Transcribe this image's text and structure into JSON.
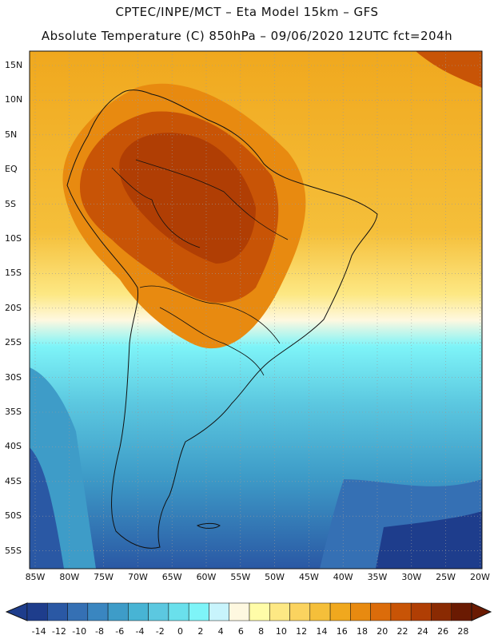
{
  "header": {
    "line1": "CPTEC/INPE/MCT –  Eta Model 15km – GFS",
    "line2": "Absolute Temperature (C) 850hPa – 09/06/2020 12UTC fct=204h"
  },
  "map": {
    "lat_labels": [
      "15N",
      "10N",
      "5N",
      "EQ",
      "5S",
      "10S",
      "15S",
      "20S",
      "25S",
      "30S",
      "35S",
      "40S",
      "45S",
      "50S",
      "55S"
    ],
    "lon_labels": [
      "85W",
      "80W",
      "75W",
      "70W",
      "65W",
      "60W",
      "55W",
      "50W",
      "45W",
      "40W",
      "35W",
      "30W",
      "25W",
      "20W"
    ]
  },
  "colorbar": {
    "labels": [
      "-14",
      "-12",
      "-10",
      "-8",
      "-6",
      "-4",
      "-2",
      "0",
      "2",
      "4",
      "6",
      "8",
      "10",
      "12",
      "14",
      "16",
      "18",
      "20",
      "22",
      "24",
      "26",
      "28"
    ],
    "colors": [
      "#1e3d8c",
      "#2a58a4",
      "#3570b4",
      "#3a86c0",
      "#3e9cc8",
      "#48b4d4",
      "#5cc8e0",
      "#6ae0ec",
      "#7ef4f8",
      "#c8f4fc",
      "#fef8e0",
      "#fffca8",
      "#fde884",
      "#fbd35f",
      "#f5bf3a",
      "#f0a81e",
      "#e88a10",
      "#dc6c0a",
      "#c85406",
      "#b03e04",
      "#8a2a02",
      "#6a1a02"
    ]
  }
}
